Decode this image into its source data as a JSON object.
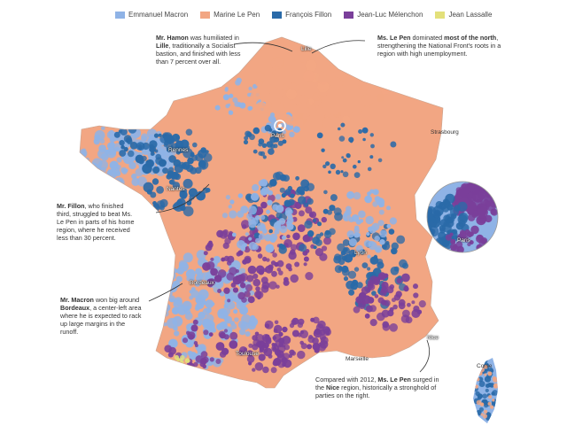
{
  "legend": [
    {
      "label": "Emmanuel Macron",
      "color": "#8fb3e6"
    },
    {
      "label": "Marine Le Pen",
      "color": "#f2a683"
    },
    {
      "label": "François Fillon",
      "color": "#2a6aa8"
    },
    {
      "label": "Jean-Luc Mélenchon",
      "color": "#7a3f9a"
    },
    {
      "label": "Jean Lassalle",
      "color": "#e3e07a"
    }
  ],
  "annotations": {
    "hamon": {
      "name": "Mr. Hamon",
      "t1": " was humiliated in",
      "city": "Lille",
      "t2": ", traditionally a Socialist",
      "t3": "bastion, and finished with less",
      "t4": "than 7 percent over all."
    },
    "lepen_north": {
      "name": "Ms. Le Pen",
      "t1": " dominated ",
      "strong": "most of the north",
      "t2": ",",
      "t3": "strengthening the National Front's roots in a",
      "t4": "region with high unemployment."
    },
    "fillon": {
      "name": "Mr. Fillon",
      "t1": ", who finished",
      "t2": "third, struggled to beat Ms.",
      "t3": "Le Pen in parts of his home",
      "t4": "region, where he received",
      "t5": "less than 30 percent."
    },
    "macron": {
      "name": "Mr. Macron",
      "t1": " won big around",
      "city": "Bordeaux",
      "t2": ", a center-left area",
      "t3": "where he is expected to rack",
      "t4": "up large margins in the",
      "t5": "runoff."
    },
    "lepen_nice": {
      "t1": "Compared with 2012, ",
      "name": "Ms. Le Pen",
      "t2": " surged in",
      "t3": "the ",
      "city": "Nice",
      "t4": " region, historically a stronghold of",
      "t5": "parties on the right."
    }
  },
  "cities": {
    "lille": "Lille",
    "paris": "Paris",
    "strasbourg": "Strasbourg",
    "rennes": "Rennes",
    "nantes": "Nantes",
    "lyon": "Lyon",
    "bordeaux": "Bordeaux",
    "toulouse": "Toulouse",
    "marseille": "Marseille",
    "nice": "Nice",
    "corse": "Corse",
    "inset_paris": "Paris"
  }
}
